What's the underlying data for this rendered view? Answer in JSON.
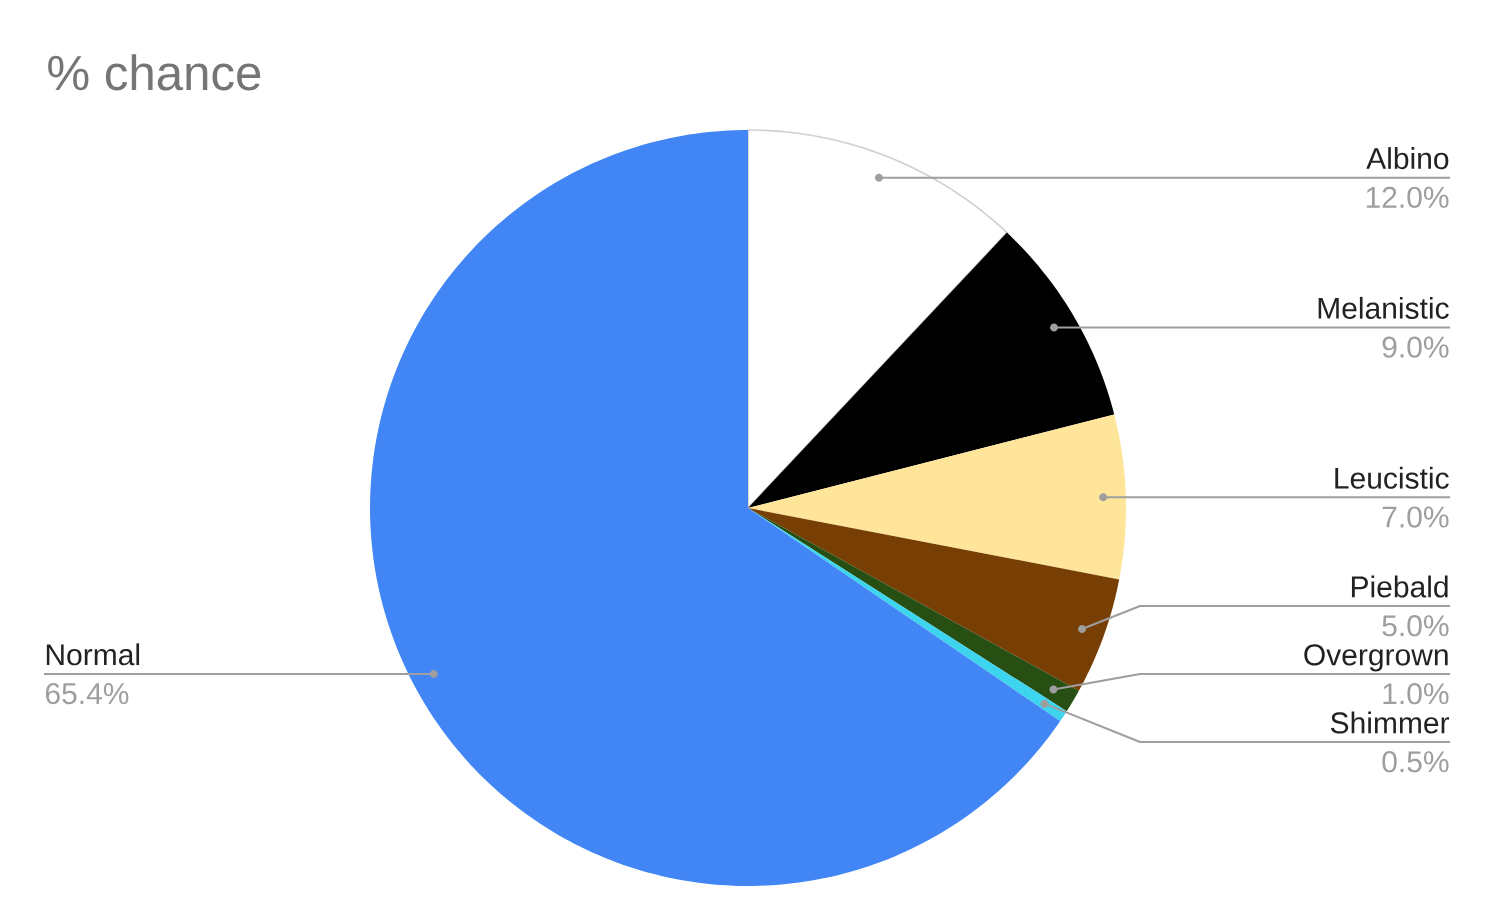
{
  "chart_data": {
    "type": "pie",
    "title": "% chance",
    "categories": [
      "Albino",
      "Melanistic",
      "Leucistic",
      "Piebald",
      "Overgrown",
      "Shimmer",
      "Normal"
    ],
    "values": [
      12.0,
      9.0,
      7.0,
      5.0,
      1.0,
      0.5,
      65.4
    ],
    "colors": [
      "#ffffff",
      "#000000",
      "#ffe599",
      "#783f04",
      "#274e13",
      "#3dd4ee",
      "#4285f4"
    ],
    "value_labels": [
      "12.0%",
      "9.0%",
      "7.0%",
      "5.0%",
      "1.0%",
      "0.5%",
      "65.4%"
    ]
  }
}
